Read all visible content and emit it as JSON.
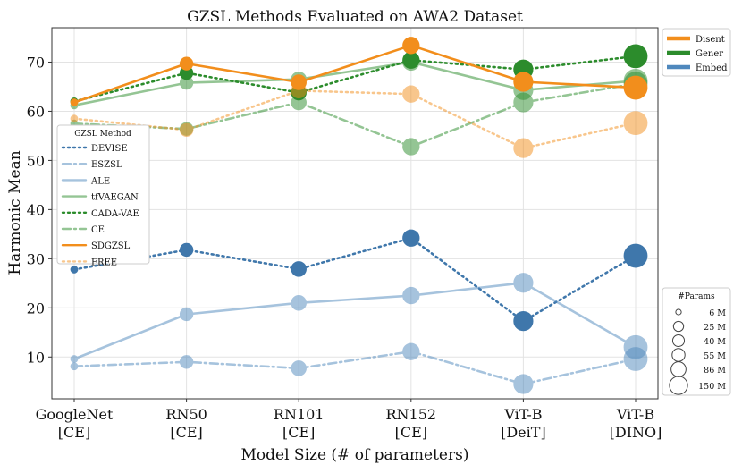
{
  "chart_data": {
    "type": "line",
    "title": "GZSL Methods Evaluated on AWA2 Dataset",
    "xlabel": "Model Size (# of parameters)",
    "ylabel": "Harmonic Mean",
    "ylim": [
      1.5,
      77
    ],
    "yticks": [
      10,
      20,
      30,
      40,
      50,
      60,
      70
    ],
    "grid": true,
    "categories": [
      [
        "GoogleNet",
        "[CE]"
      ],
      [
        "RN50",
        "[CE]"
      ],
      [
        "RN101",
        "[CE]"
      ],
      [
        "RN152",
        "[CE]"
      ],
      [
        "ViT-B",
        "[DeiT]"
      ],
      [
        "ViT-B",
        "[DINO]"
      ]
    ],
    "params_m": [
      6,
      25,
      40,
      55,
      86,
      150
    ],
    "group_legend": {
      "placement": "outside-top-right",
      "entries": [
        {
          "name": "Disent",
          "color": "#f28e1c"
        },
        {
          "name": "Gener",
          "color": "#2c8c2c"
        },
        {
          "name": "Embed",
          "color": "#4f88bd"
        }
      ]
    },
    "method_legend": {
      "title": "GZSL Method",
      "placement": "center-left"
    },
    "size_legend": {
      "title": "#Params",
      "placement": "outside-bottom-right",
      "entries": [
        "6 M",
        "25 M",
        "40 M",
        "55 M",
        "86 M",
        "150 M"
      ],
      "values": [
        6,
        25,
        40,
        55,
        86,
        150
      ]
    },
    "series": [
      {
        "name": "DEVISE",
        "group": "Embed",
        "style": "dotted",
        "color": "#3f77ab",
        "opacity": 1.0,
        "values": [
          27.8,
          31.8,
          27.9,
          34.2,
          17.3,
          30.6
        ]
      },
      {
        "name": "ESZSL",
        "group": "Embed",
        "style": "dashdot",
        "color": "#4f88bd",
        "opacity": 0.5,
        "values": [
          8.1,
          9.0,
          7.7,
          11.1,
          4.5,
          9.6
        ]
      },
      {
        "name": "ALE",
        "group": "Embed",
        "style": "solid",
        "color": "#4f88bd",
        "opacity": 0.5,
        "values": [
          9.6,
          18.7,
          21.0,
          22.5,
          25.1,
          12.0
        ]
      },
      {
        "name": "tfVAEGAN",
        "group": "Gener",
        "style": "solid",
        "color": "#2c8c2c",
        "opacity": 0.5,
        "values": [
          61.2,
          65.8,
          66.5,
          70.0,
          64.3,
          66.2
        ]
      },
      {
        "name": "CADA-VAE",
        "group": "Gener",
        "style": "dotted",
        "color": "#2c8c2c",
        "opacity": 1.0,
        "values": [
          62.0,
          67.8,
          63.8,
          70.4,
          68.5,
          71.2
        ]
      },
      {
        "name": "CE",
        "group": "Gener",
        "style": "dashdot",
        "color": "#2c8c2c",
        "opacity": 0.5,
        "values": [
          57.5,
          56.4,
          61.8,
          52.8,
          61.8,
          65.6
        ]
      },
      {
        "name": "SDGZSL",
        "group": "Disent",
        "style": "solid",
        "color": "#f28e1c",
        "opacity": 1.0,
        "values": [
          61.8,
          69.7,
          65.9,
          73.4,
          66.0,
          64.8
        ]
      },
      {
        "name": "FREE",
        "group": "Disent",
        "style": "dotted",
        "color": "#f28e1c",
        "opacity": 0.5,
        "values": [
          58.5,
          56.2,
          64.2,
          63.5,
          52.5,
          57.6
        ]
      }
    ]
  }
}
